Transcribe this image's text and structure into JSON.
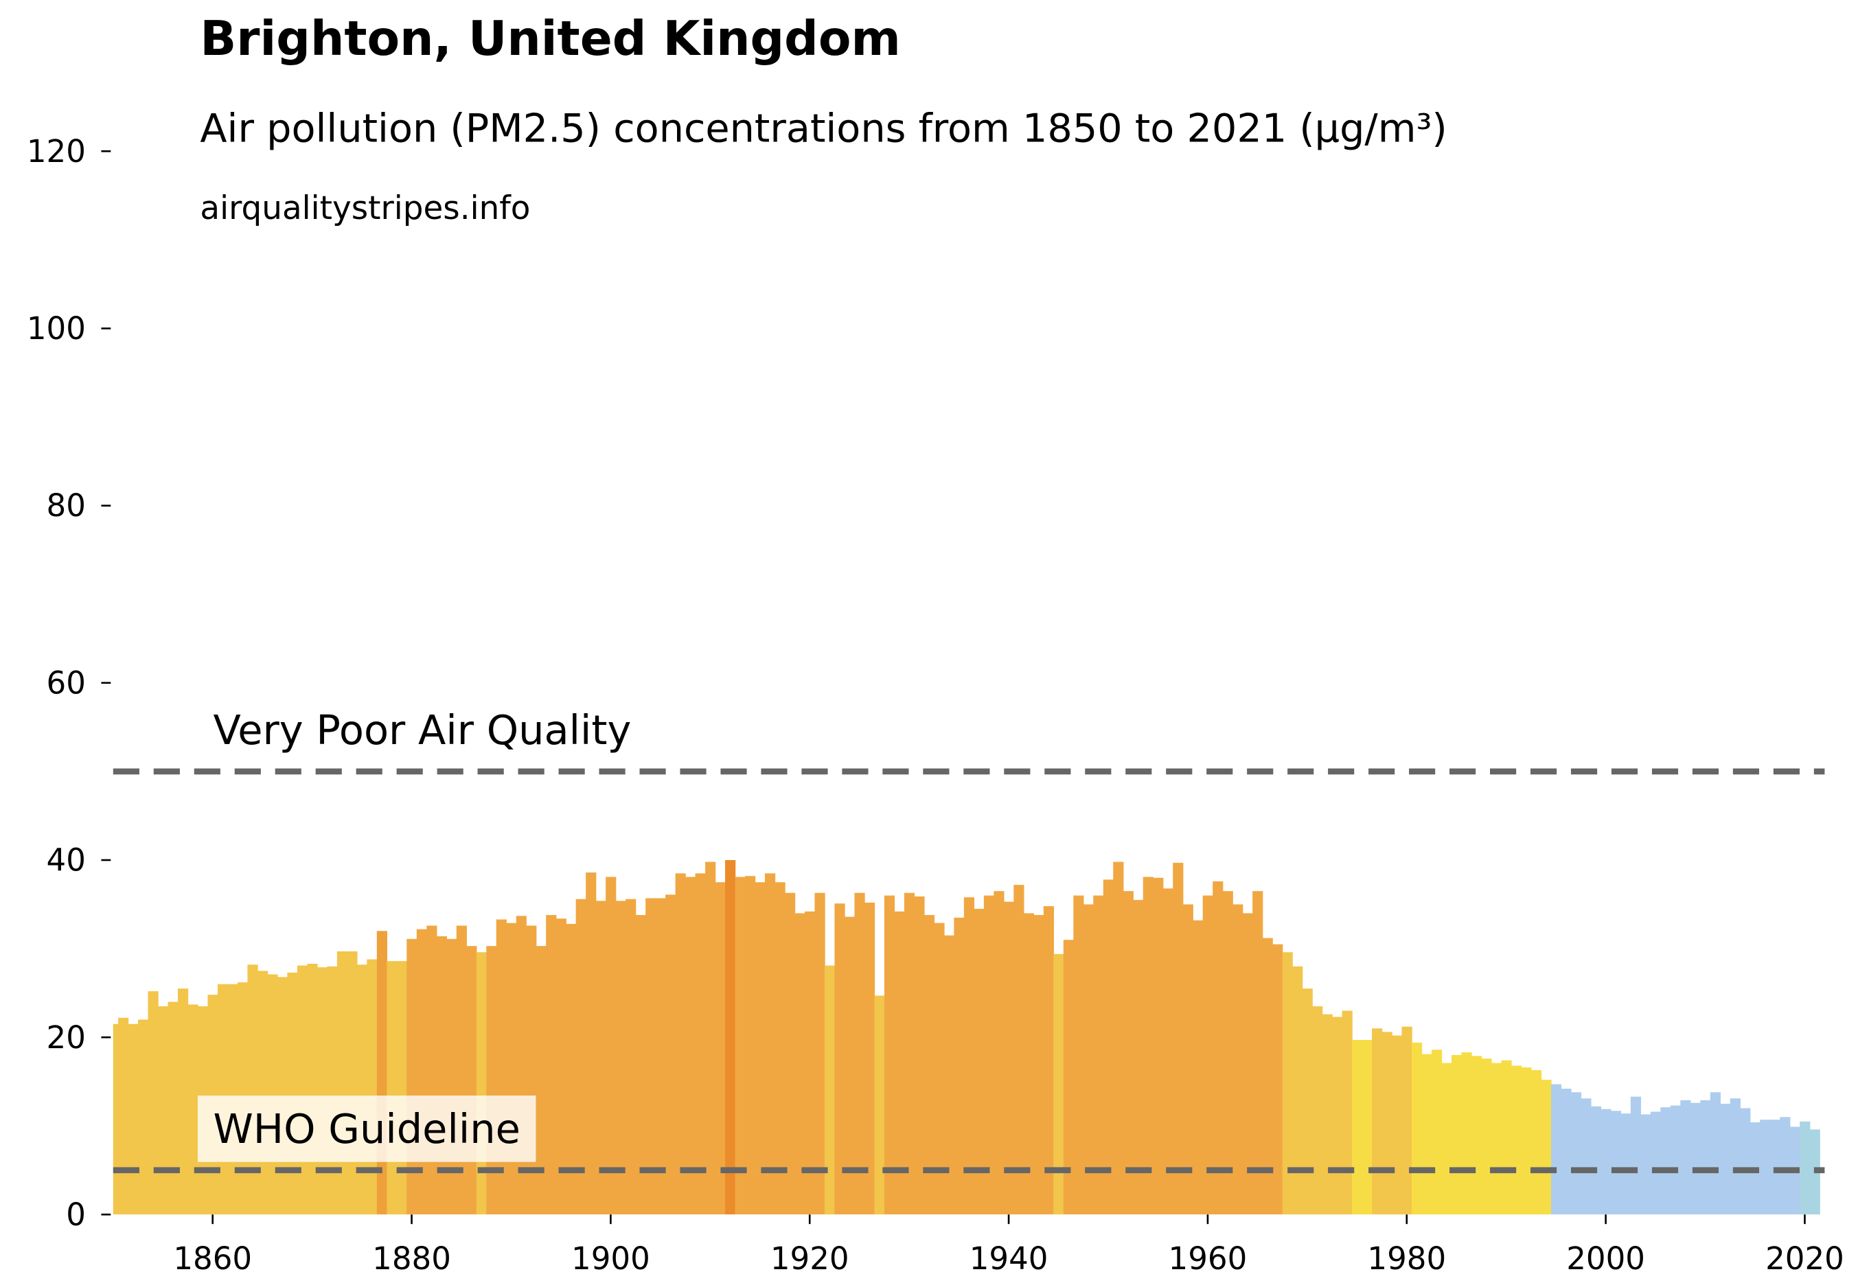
{
  "chart_data": {
    "type": "bar",
    "title": "Brighton, United Kingdom",
    "subtitle": "Air pollution (PM2.5) concentrations from 1850 to 2021 (µg/m³)",
    "source": "airqualitystripes.info",
    "x": [
      1850,
      1851,
      1852,
      1853,
      1854,
      1855,
      1856,
      1857,
      1858,
      1859,
      1860,
      1861,
      1862,
      1863,
      1864,
      1865,
      1866,
      1867,
      1868,
      1869,
      1870,
      1871,
      1872,
      1873,
      1874,
      1875,
      1876,
      1877,
      1878,
      1879,
      1880,
      1881,
      1882,
      1883,
      1884,
      1885,
      1886,
      1887,
      1888,
      1889,
      1890,
      1891,
      1892,
      1893,
      1894,
      1895,
      1896,
      1897,
      1898,
      1899,
      1900,
      1901,
      1902,
      1903,
      1904,
      1905,
      1906,
      1907,
      1908,
      1909,
      1910,
      1911,
      1912,
      1913,
      1914,
      1915,
      1916,
      1917,
      1918,
      1919,
      1920,
      1921,
      1922,
      1923,
      1924,
      1925,
      1926,
      1927,
      1928,
      1929,
      1930,
      1931,
      1932,
      1933,
      1934,
      1935,
      1936,
      1937,
      1938,
      1939,
      1940,
      1941,
      1942,
      1943,
      1944,
      1945,
      1946,
      1947,
      1948,
      1949,
      1950,
      1951,
      1952,
      1953,
      1954,
      1955,
      1956,
      1957,
      1958,
      1959,
      1960,
      1961,
      1962,
      1963,
      1964,
      1965,
      1966,
      1967,
      1968,
      1969,
      1970,
      1971,
      1972,
      1973,
      1974,
      1975,
      1976,
      1977,
      1978,
      1979,
      1980,
      1981,
      1982,
      1983,
      1984,
      1985,
      1986,
      1987,
      1988,
      1989,
      1990,
      1991,
      1992,
      1993,
      1994,
      1995,
      1996,
      1997,
      1998,
      1999,
      2000,
      2001,
      2002,
      2003,
      2004,
      2005,
      2006,
      2007,
      2008,
      2009,
      2010,
      2011,
      2012,
      2013,
      2014,
      2015,
      2016,
      2017,
      2018,
      2019,
      2020,
      2021
    ],
    "values": [
      21.5,
      22.2,
      21.5,
      22,
      25.2,
      23.5,
      24,
      25.5,
      23.7,
      23.5,
      24.8,
      26,
      26,
      26.2,
      28.2,
      27.5,
      27.1,
      26.8,
      27.3,
      28.1,
      28.3,
      27.9,
      28,
      29.7,
      29.7,
      28.2,
      28.8,
      32,
      28.6,
      28.6,
      31.1,
      32.2,
      32.6,
      31.4,
      31.1,
      32.6,
      30.3,
      29.6,
      30.3,
      33.3,
      32.9,
      33.7,
      32.6,
      30.3,
      33.8,
      33.4,
      32.8,
      35.6,
      38.6,
      35.4,
      38.1,
      35.4,
      35.6,
      33.8,
      35.7,
      35.7,
      36.1,
      38.5,
      38.1,
      38.5,
      39.8,
      37.5,
      40,
      38.1,
      38.2,
      37.5,
      38.5,
      37.5,
      36.3,
      34,
      34.2,
      36.3,
      28.1,
      35.1,
      33.6,
      36.3,
      35.2,
      24.7,
      36,
      34.2,
      36.3,
      35.9,
      33.8,
      32.9,
      31.5,
      33.5,
      35.8,
      34.5,
      36,
      36.5,
      35.3,
      37.2,
      34,
      33.8,
      34.8,
      29.4,
      31,
      36,
      35,
      36,
      37.8,
      39.8,
      36.5,
      35.5,
      38.1,
      38,
      36.8,
      39.7,
      35,
      33.2,
      36,
      37.6,
      36.5,
      35,
      34,
      36.5,
      31.2,
      30.5,
      29.6,
      28,
      25.5,
      23.5,
      22.6,
      22.3,
      23,
      19.7,
      19.7,
      21,
      20.6,
      20.2,
      21.2,
      19.4,
      18.1,
      18.6,
      17.1,
      18,
      18.3,
      17.9,
      17.6,
      17.1,
      17.4,
      16.8,
      16.6,
      16.3,
      15.2,
      14.7,
      14.2,
      13.8,
      13.1,
      12.2,
      11.9,
      11.7,
      11.4,
      13.3,
      11.3,
      11.6,
      12.1,
      12.3,
      12.9,
      12.6,
      12.9,
      13.8,
      12.5,
      13.1,
      12,
      10.4,
      10.7,
      10.7,
      11,
      9.9,
      10.5,
      9.6
    ],
    "colors": [
      "#f2c54b",
      "#f2c54b",
      "#f2c54b",
      "#f2c54b",
      "#f2c54b",
      "#f2c54b",
      "#f2c54b",
      "#f2c54b",
      "#f2c54b",
      "#f2c54b",
      "#f2c54b",
      "#f2c54b",
      "#f2c54b",
      "#f2c54b",
      "#f2c54b",
      "#f2c54b",
      "#f2c54b",
      "#f2c54b",
      "#f2c54b",
      "#f2c54b",
      "#f2c54b",
      "#f2c54b",
      "#f2c54b",
      "#f2c54b",
      "#f2c54b",
      "#f2c54b",
      "#f2c54b",
      "#eea03a",
      "#f2c54b",
      "#f2c54b",
      "#f0a742",
      "#f0a742",
      "#f0a742",
      "#f0a742",
      "#f0a742",
      "#f0a742",
      "#f0a742",
      "#f2c54b",
      "#f0a742",
      "#f0a742",
      "#f0a742",
      "#f0a742",
      "#f0a742",
      "#f0a742",
      "#f0a742",
      "#f0a742",
      "#f0a742",
      "#f0a742",
      "#f0a742",
      "#f0a742",
      "#f0a742",
      "#f0a742",
      "#f0a742",
      "#f0a742",
      "#f0a742",
      "#f0a742",
      "#f0a742",
      "#f0a742",
      "#f0a742",
      "#f0a742",
      "#f0a742",
      "#f0a742",
      "#ec8b2a",
      "#f0a742",
      "#f0a742",
      "#f0a742",
      "#f0a742",
      "#f0a742",
      "#f0a742",
      "#f0a742",
      "#f0a742",
      "#f0a742",
      "#f2c54b",
      "#f0a742",
      "#f0a742",
      "#f0a742",
      "#f0a742",
      "#f2c54b",
      "#f0a742",
      "#f0a742",
      "#f0a742",
      "#f0a742",
      "#f0a742",
      "#f0a742",
      "#f0a742",
      "#f0a742",
      "#f0a742",
      "#f0a742",
      "#f0a742",
      "#f0a742",
      "#f0a742",
      "#f0a742",
      "#f0a742",
      "#f0a742",
      "#f0a742",
      "#f2c54b",
      "#f0a742",
      "#f0a742",
      "#f0a742",
      "#f0a742",
      "#f0a742",
      "#f0a742",
      "#f0a742",
      "#f0a742",
      "#f0a742",
      "#f0a742",
      "#f0a742",
      "#f0a742",
      "#f0a742",
      "#f0a742",
      "#f0a742",
      "#f0a742",
      "#f0a742",
      "#f0a742",
      "#f0a742",
      "#f0a742",
      "#f0a742",
      "#f0a742",
      "#f2c54b",
      "#f2c54b",
      "#f2c54b",
      "#f2c54b",
      "#f2c54b",
      "#f2c54b",
      "#f2c54b",
      "#f7dd45",
      "#f7dd45",
      "#f2c54b",
      "#f2c54b",
      "#f2c54b",
      "#f2c54b",
      "#f7dd45",
      "#f7dd45",
      "#f7dd45",
      "#f7dd45",
      "#f7dd45",
      "#f7dd45",
      "#f7dd45",
      "#f7dd45",
      "#f7dd45",
      "#f7dd45",
      "#f7dd45",
      "#f7dd45",
      "#f7dd45",
      "#f7dd45",
      "#aecdee",
      "#aecdee",
      "#aecdee",
      "#aecdee",
      "#aecdee",
      "#aecdee",
      "#aecdee",
      "#aecdee",
      "#aecdee",
      "#aecdee",
      "#aecdee",
      "#aecdee",
      "#aecdee",
      "#aecdee",
      "#aecdee",
      "#aecdee",
      "#aecdee",
      "#aecdee",
      "#aecdee",
      "#aecdee",
      "#aecdee",
      "#aecdee",
      "#aecdee",
      "#aecdee",
      "#aecdee",
      "#a9d5e2",
      "#a9d5e2",
      "#a9d5e2"
    ],
    "xlim": [
      1850,
      2022
    ],
    "xticks": [
      1860,
      1880,
      1900,
      1920,
      1940,
      1960,
      1980,
      2000,
      2020
    ],
    "ylim": [
      0,
      120
    ],
    "yticks": [
      0,
      20,
      40,
      60,
      80,
      100,
      120
    ],
    "reference_lines": [
      {
        "value": 50,
        "label": "Very Poor Air Quality"
      },
      {
        "value": 5,
        "label": "WHO Guideline"
      }
    ]
  }
}
